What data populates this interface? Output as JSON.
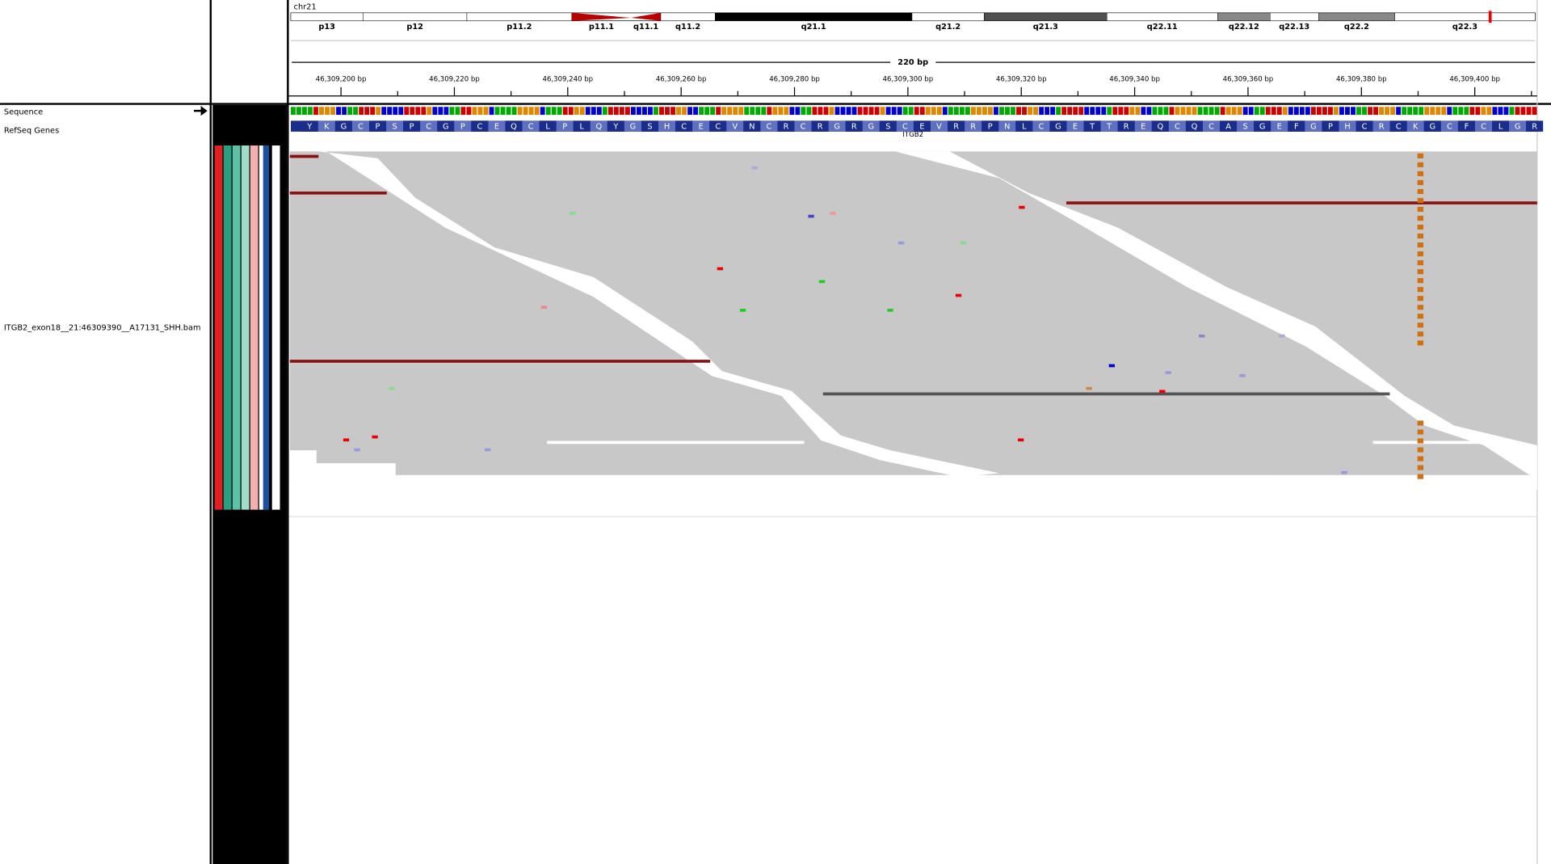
{
  "header": {
    "chromosome": "chr21",
    "cytobands": [
      "p13",
      "p12",
      "p11.2",
      "p11.1",
      "q11.1",
      "q11.2",
      "q21.1",
      "q21.2",
      "q21.3",
      "q22.11",
      "q22.12",
      "q22.13",
      "q22.2",
      "q22.3"
    ],
    "span_label": "220 bp"
  },
  "ruler": {
    "xlim": [
      46309190.8,
      46309411
    ],
    "ticks": [
      {
        "value": 46309200,
        "label": "46,309,200 bp"
      },
      {
        "value": 46309220,
        "label": "46,309,220 bp"
      },
      {
        "value": 46309240,
        "label": "46,309,240 bp"
      },
      {
        "value": 46309260,
        "label": "46,309,260 bp"
      },
      {
        "value": 46309280,
        "label": "46,309,280 bp"
      },
      {
        "value": 46309300,
        "label": "46,309,300 bp"
      },
      {
        "value": 46309320,
        "label": "46,309,320 bp"
      },
      {
        "value": 46309340,
        "label": "46,309,340 bp"
      },
      {
        "value": 46309360,
        "label": "46,309,360 bp"
      },
      {
        "value": 46309380,
        "label": "46,309,380 bp"
      },
      {
        "value": 46309400,
        "label": "46,309,400 bp"
      }
    ]
  },
  "tracks": {
    "sequence": "Sequence",
    "refseq": "RefSeq Genes",
    "gene": "ITGB2",
    "bam": "ITGB2_exon18__21:46309390__A17131_SHH.bam"
  },
  "amino_acids": [
    "Y",
    "K",
    "G",
    "C",
    "P",
    "S",
    "P",
    "C",
    "G",
    "P",
    "C",
    "E",
    "Q",
    "C",
    "L",
    "P",
    "L",
    "Q",
    "Y",
    "G",
    "S",
    "H",
    "C",
    "E",
    "C",
    "V",
    "N",
    "C",
    "R",
    "C",
    "R",
    "G",
    "R",
    "G",
    "S",
    "C",
    "E",
    "V",
    "R",
    "R",
    "P",
    "N",
    "L",
    "C",
    "G",
    "E",
    "T",
    "T",
    "R",
    "E",
    "Q",
    "C",
    "Q",
    "C",
    "A",
    "S",
    "G",
    "E",
    "F",
    "G",
    "P",
    "H",
    "C",
    "R",
    "C",
    "K",
    "G",
    "C",
    "F",
    "C",
    "L",
    "G",
    "R"
  ]
}
